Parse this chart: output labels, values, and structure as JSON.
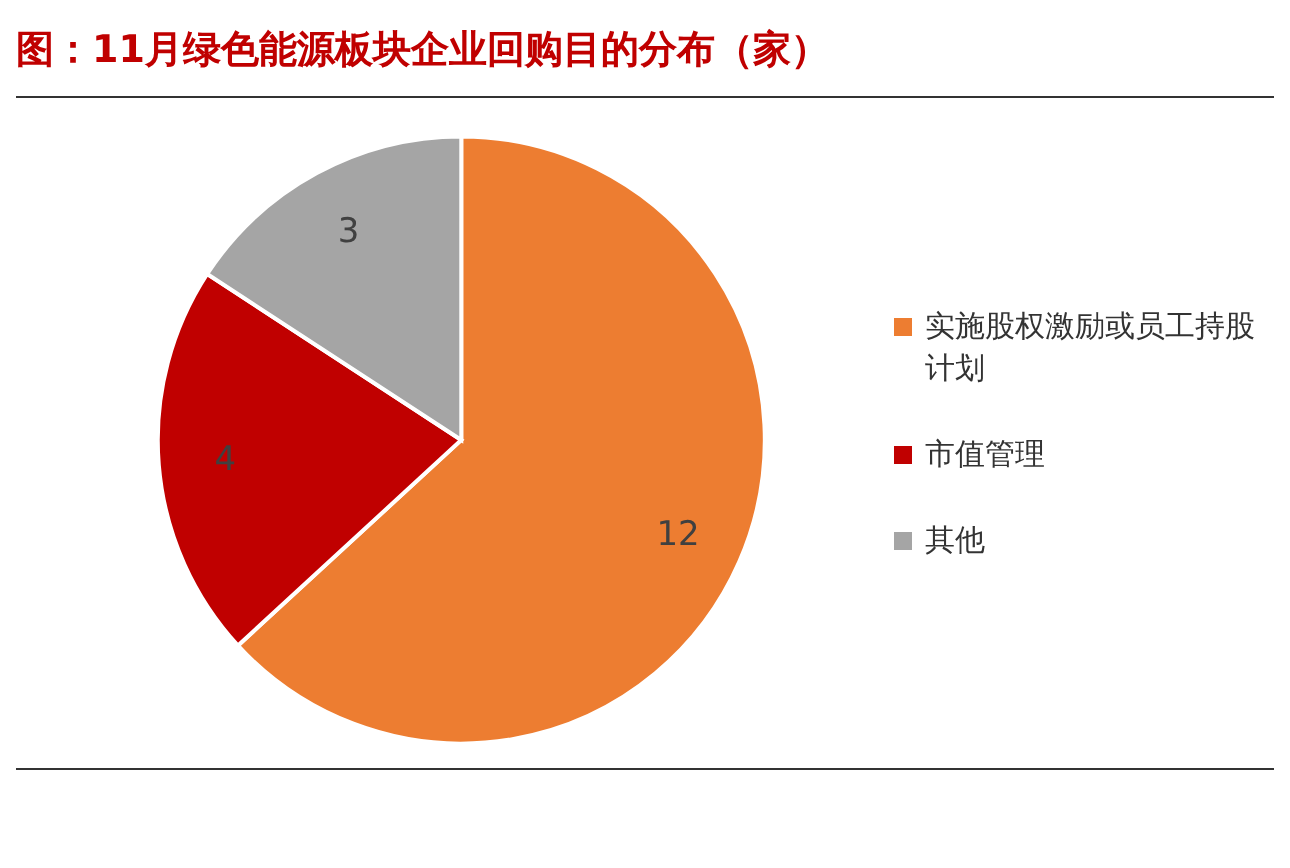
{
  "chart_data": {
    "type": "pie",
    "title": "图：11月绿色能源板块企业回购目的分布（家）",
    "categories": [
      "实施股权激励或员工持股计划",
      "市值管理",
      "其他"
    ],
    "values": [
      12,
      4,
      3
    ],
    "colors": [
      "#ed7d31",
      "#c00000",
      "#a5a5a5"
    ],
    "data_labels": true,
    "legend": "right"
  }
}
